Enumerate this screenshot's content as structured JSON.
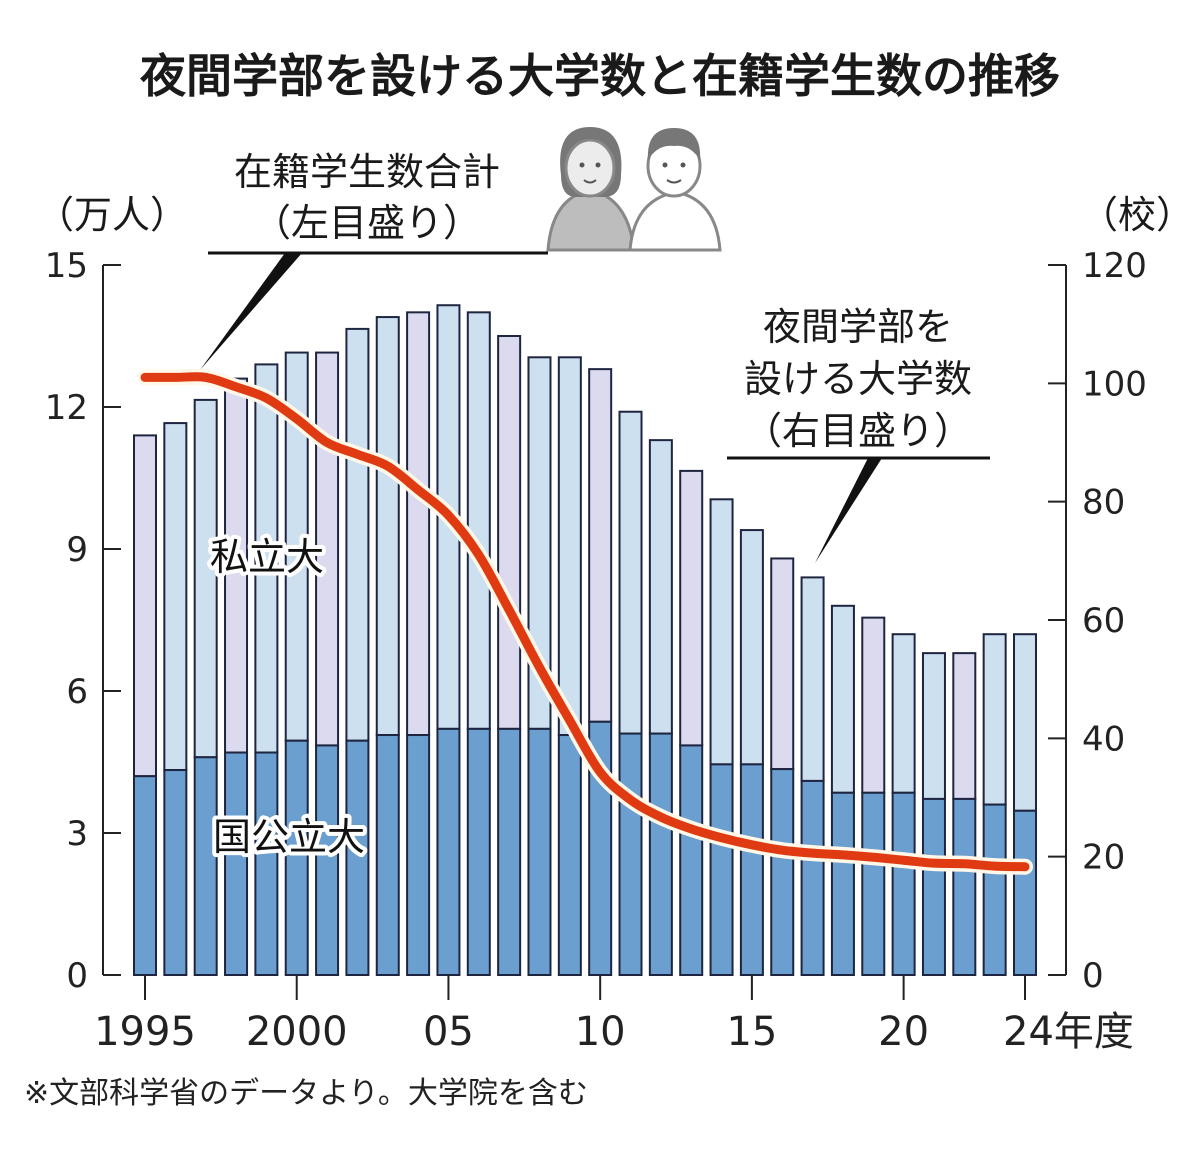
{
  "chart_data": {
    "type": "bar",
    "subtype": "stacked-bar-with-line",
    "title": "夜間学部を設ける大学数と在籍学生数の推移",
    "x": [
      "1995",
      "1996",
      "1997",
      "1998",
      "1999",
      "2000",
      "2001",
      "2002",
      "2003",
      "2004",
      "2005",
      "2006",
      "2007",
      "2008",
      "2009",
      "2010",
      "2011",
      "2012",
      "2013",
      "2014",
      "2015",
      "2016",
      "2017",
      "2018",
      "2019",
      "2020",
      "2021",
      "2022",
      "2023",
      "2024"
    ],
    "x_tick_labels": [
      {
        "year": "1995",
        "label": "1995"
      },
      {
        "year": "2000",
        "label": "2000"
      },
      {
        "year": "2005",
        "label": "05"
      },
      {
        "year": "2010",
        "label": "10"
      },
      {
        "year": "2015",
        "label": "15"
      },
      {
        "year": "2020",
        "label": "20"
      },
      {
        "year": "2024",
        "label": "24年度"
      }
    ],
    "left_axis": {
      "unit_label": "（万人）",
      "ticks": [
        0,
        3,
        6,
        9,
        12,
        15
      ],
      "range": [
        0,
        15
      ]
    },
    "right_axis": {
      "unit_label": "（校）",
      "ticks": [
        0,
        20,
        40,
        60,
        80,
        100,
        120
      ],
      "range": [
        0,
        120
      ]
    },
    "series": [
      {
        "name": "国公立大",
        "kind": "bar-stack-bottom",
        "axis": "left",
        "color": "#6a9fd0",
        "values": [
          4.2,
          4.33,
          4.6,
          4.7,
          4.7,
          4.95,
          4.85,
          4.95,
          5.07,
          5.07,
          5.2,
          5.2,
          5.2,
          5.2,
          5.07,
          5.35,
          5.1,
          5.1,
          4.85,
          4.45,
          4.45,
          4.35,
          4.1,
          3.85,
          3.85,
          3.85,
          3.72,
          3.72,
          3.6,
          3.47
        ]
      },
      {
        "name": "私立大",
        "kind": "bar-stack-top",
        "axis": "left",
        "color_a": "#dcdaee",
        "color_b": "#cde0ef",
        "values": [
          7.2,
          7.33,
          7.55,
          7.9,
          8.2,
          8.2,
          8.3,
          8.7,
          8.83,
          8.93,
          8.95,
          8.8,
          8.3,
          7.85,
          7.98,
          7.45,
          6.8,
          6.2,
          5.8,
          5.6,
          4.95,
          4.45,
          4.3,
          3.95,
          3.7,
          3.35,
          3.08,
          3.08,
          3.6,
          3.73
        ]
      },
      {
        "name": "夜間学部を設ける大学数",
        "kind": "line",
        "axis": "right",
        "color": "#e03a12",
        "values": [
          101,
          101,
          101,
          99.4,
          97.5,
          94,
          90,
          88,
          86,
          82,
          77.7,
          71,
          61.7,
          52,
          43,
          34.3,
          29.6,
          26.7,
          24.7,
          23.2,
          22,
          21.1,
          20.6,
          20.3,
          19.9,
          19.4,
          18.9,
          18.8,
          18.4,
          18.3
        ]
      }
    ],
    "annotations": {
      "total_label_line1": "在籍学生数合計",
      "total_label_line2": "（左目盛り）",
      "line_label_line1": "夜間学部を",
      "line_label_line2": "設ける大学数",
      "line_label_line3": "（右目盛り）",
      "private_label": "私立大",
      "public_label": "国公立大"
    },
    "footnote": "※文部科学省のデータより。大学院を含む",
    "grid": false,
    "legend": "inline-labels"
  }
}
